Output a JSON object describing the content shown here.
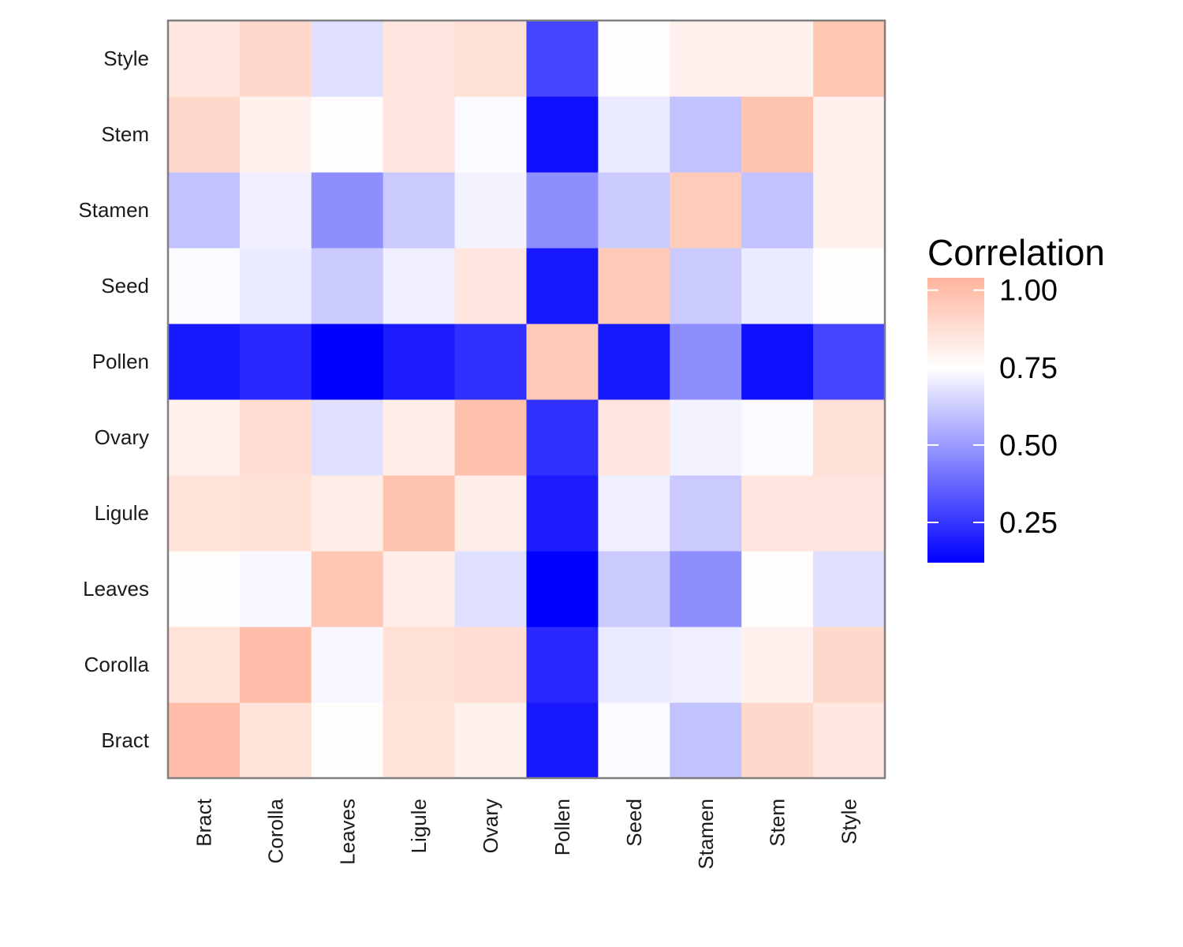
{
  "chart_data": {
    "type": "heatmap",
    "x_categories": [
      "Bract",
      "Corolla",
      "Leaves",
      "Ligule",
      "Ovary",
      "Pollen",
      "Seed",
      "Stamen",
      "Stem",
      "Style"
    ],
    "y_categories": [
      "Bract",
      "Corolla",
      "Leaves",
      "Ligule",
      "Ovary",
      "Pollen",
      "Seed",
      "Stamen",
      "Stem",
      "Style"
    ],
    "values": [
      [
        1.0,
        0.86,
        0.76,
        0.86,
        0.8,
        0.18,
        0.74,
        0.6,
        0.9,
        0.84
      ],
      [
        0.86,
        1.0,
        0.73,
        0.87,
        0.88,
        0.22,
        0.7,
        0.71,
        0.8,
        0.9
      ],
      [
        0.76,
        0.73,
        0.97,
        0.82,
        0.67,
        0.12,
        0.62,
        0.47,
        0.76,
        0.67
      ],
      [
        0.86,
        0.87,
        0.82,
        0.98,
        0.82,
        0.19,
        0.71,
        0.62,
        0.85,
        0.85
      ],
      [
        0.8,
        0.88,
        0.67,
        0.82,
        0.99,
        0.24,
        0.85,
        0.72,
        0.74,
        0.87
      ],
      [
        0.18,
        0.22,
        0.12,
        0.19,
        0.24,
        0.96,
        0.18,
        0.47,
        0.16,
        0.29
      ],
      [
        0.74,
        0.7,
        0.62,
        0.71,
        0.85,
        0.18,
        0.96,
        0.62,
        0.7,
        0.76
      ],
      [
        0.6,
        0.71,
        0.47,
        0.62,
        0.72,
        0.47,
        0.62,
        0.95,
        0.6,
        0.8
      ],
      [
        0.9,
        0.8,
        0.76,
        0.85,
        0.74,
        0.16,
        0.7,
        0.6,
        0.98,
        0.8
      ],
      [
        0.84,
        0.9,
        0.67,
        0.85,
        0.87,
        0.29,
        0.76,
        0.8,
        0.8,
        0.97
      ]
    ],
    "legend": {
      "title": "Correlation",
      "ticks": [
        1.0,
        0.75,
        0.5,
        0.25
      ],
      "tick_labels": [
        "1.00",
        "0.75",
        "0.50",
        "0.25"
      ],
      "range": [
        0.12,
        1.04
      ]
    },
    "colors": {
      "low": "#0000ff",
      "mid": "#ffffff",
      "high": "#ffb49c",
      "midpoint": 0.75,
      "panel_border": "#7f7f7f"
    }
  }
}
